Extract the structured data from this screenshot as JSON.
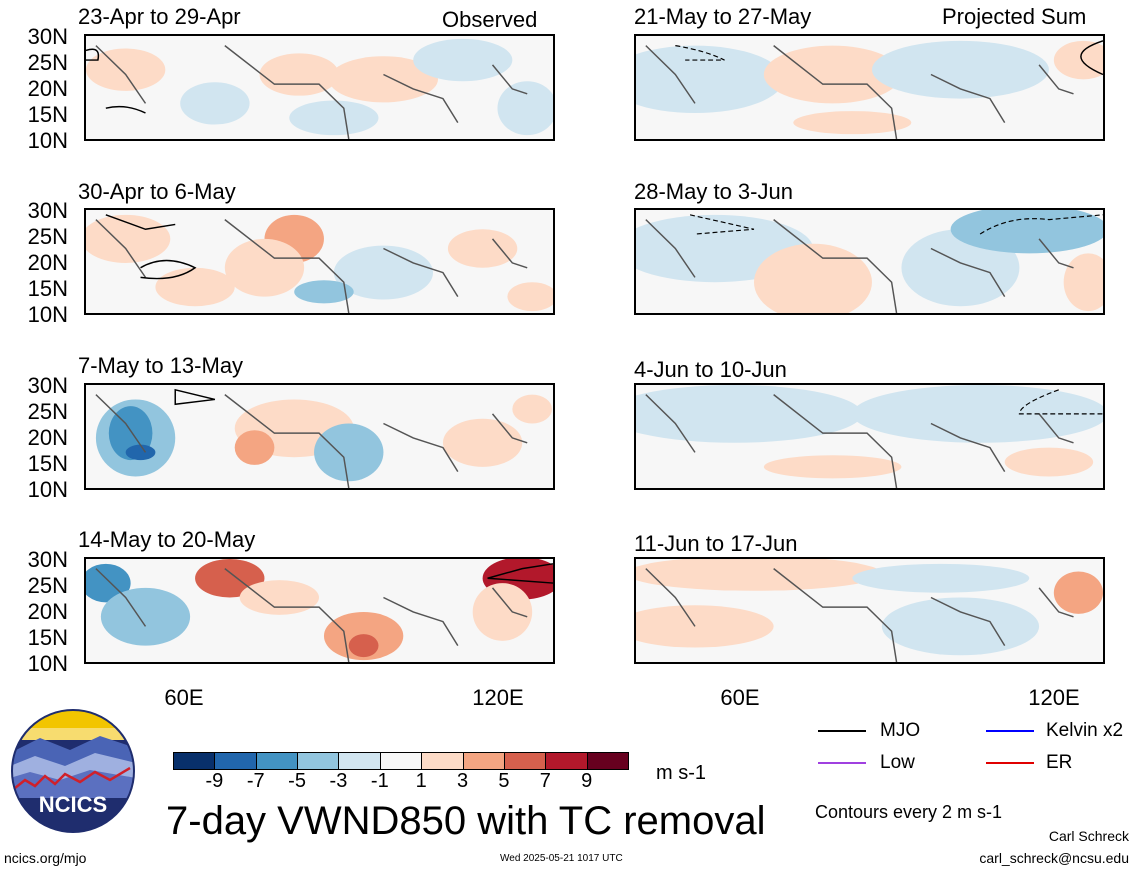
{
  "panels_left": [
    {
      "title": "23-Apr to 29-Apr",
      "tag": "Observed"
    },
    {
      "title": "30-Apr to 6-May",
      "tag": ""
    },
    {
      "title": "7-May to 13-May",
      "tag": ""
    },
    {
      "title": "14-May to 20-May",
      "tag": ""
    }
  ],
  "panels_right": [
    {
      "title": "21-May to 27-May",
      "tag": "Projected Sum"
    },
    {
      "title": "28-May to 3-Jun",
      "tag": ""
    },
    {
      "title": "4-Jun to 10-Jun",
      "tag": ""
    },
    {
      "title": "11-Jun to 17-Jun",
      "tag": ""
    }
  ],
  "lat_labels": [
    "30N",
    "25N",
    "20N",
    "15N",
    "10N"
  ],
  "lon_labels": [
    "60E",
    "120E"
  ],
  "colorbar": {
    "colors": [
      "#08306b",
      "#2166ac",
      "#4393c3",
      "#92c5de",
      "#d1e5f0",
      "#f7f7f7",
      "#fddbc7",
      "#f4a582",
      "#d6604d",
      "#b2182b",
      "#67001f"
    ],
    "labels": [
      "-9",
      "-7",
      "-5",
      "-3",
      "-1",
      "1",
      "3",
      "5",
      "7",
      "9"
    ],
    "units": "m s-1"
  },
  "main_title": "7-day VWND850 with TC removal",
  "legend": [
    {
      "label": "MJO",
      "color": "#000000"
    },
    {
      "label": "Kelvin x2",
      "color": "#0000ff"
    },
    {
      "label": "Low",
      "color": "#a040e0"
    },
    {
      "label": "ER",
      "color": "#e00000"
    }
  ],
  "contour_note": "Contours every 2 m s-1",
  "logo_text": "NCICS",
  "footer": {
    "left": "ncics.org/mjo",
    "center": "Wed 2025-05-21 1017 UTC",
    "author": "Carl Schreck",
    "email": "carl_schreck@ncsu.edu"
  }
}
